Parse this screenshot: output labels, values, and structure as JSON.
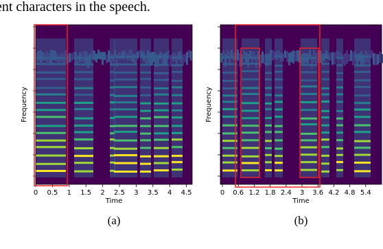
{
  "top_text": "ent characters in the speech.",
  "panels": [
    {
      "y_label": "Frequency",
      "x_label": "Time",
      "x_ticks": [
        "0",
        "0.5",
        "1",
        "1.5",
        "2",
        "2.5",
        "3",
        "3.5",
        "4",
        "4.5"
      ],
      "caption": "(a)"
    },
    {
      "y_label": "Frequency",
      "x_label": "Time",
      "x_ticks": [
        "0",
        "0.6",
        "1.2",
        "1.8",
        "2.4",
        "3",
        "3.6",
        "4.2",
        "4.8",
        "5.4"
      ],
      "caption": "(b)"
    }
  ]
}
